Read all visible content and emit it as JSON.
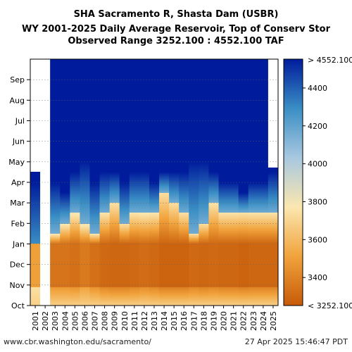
{
  "chart_data": {
    "type": "heatmap",
    "title_lines": [
      "SHA Sacramento R, Shasta Dam (USBR)",
      "WY 2001-2025 Daily Average Reservoir, Top of Conserv Stor",
      "Observed Range 3252.100 : 4552.100 TAF"
    ],
    "x_categories": [
      "2001",
      "2002",
      "2003",
      "2004",
      "2005",
      "2006",
      "2007",
      "2008",
      "2009",
      "2010",
      "2011",
      "2012",
      "2013",
      "2014",
      "2015",
      "2016",
      "2017",
      "2018",
      "2019",
      "2020",
      "2021",
      "2022",
      "2023",
      "2024",
      "2025"
    ],
    "y_categories": [
      "Oct",
      "Nov",
      "Dec",
      "Jan",
      "Feb",
      "Mar",
      "Apr",
      "May",
      "Jun",
      "Jul",
      "Aug",
      "Sep"
    ],
    "value_range": [
      3252.1,
      4552.1
    ],
    "colorbar_ticks": [
      4400,
      4200,
      4000,
      3800,
      3600,
      3400
    ],
    "colorbar_top_label": "> 4552.100",
    "colorbar_bottom_label": "< 3252.100",
    "colors": [
      "#c65a08",
      "#f1a33c",
      "#fbe7b0",
      "#a8c8e0",
      "#3a8ec4",
      "#001c9c"
    ],
    "series": [
      {
        "year": "2001",
        "rise_month": 1.5,
        "full_month": 6.0,
        "low_level": 0.55,
        "missing_after_month": 6.5
      },
      {
        "year": "2002",
        "rise_month": 4.0,
        "full_month": 6.0,
        "low_level": 0.5,
        "missing_after_month": 0
      },
      {
        "year": "2003",
        "rise_month": 3.5,
        "full_month": 6.0,
        "low_level": 0.2
      },
      {
        "year": "2004",
        "rise_month": 4.0,
        "full_month": 5.5,
        "low_level": 0.2
      },
      {
        "year": "2005",
        "rise_month": 4.5,
        "full_month": 6.5,
        "low_level": 0.18
      },
      {
        "year": "2006",
        "rise_month": 4.0,
        "full_month": 7.0,
        "low_level": 0.25
      },
      {
        "year": "2007",
        "rise_month": 3.5,
        "full_month": 6.0,
        "low_level": 0.18
      },
      {
        "year": "2008",
        "rise_month": 4.5,
        "full_month": 6.5,
        "low_level": 0.12
      },
      {
        "year": "2009",
        "rise_month": 5.0,
        "full_month": 6.5,
        "low_level": 0.1
      },
      {
        "year": "2010",
        "rise_month": 4.0,
        "full_month": 6.0,
        "low_level": 0.1
      },
      {
        "year": "2011",
        "rise_month": 4.5,
        "full_month": 6.5,
        "low_level": 0.12
      },
      {
        "year": "2012",
        "rise_month": 4.5,
        "full_month": 6.5,
        "low_level": 0.15
      },
      {
        "year": "2013",
        "rise_month": 4.5,
        "full_month": 6.0,
        "low_level": 0.12
      },
      {
        "year": "2014",
        "rise_month": 5.5,
        "full_month": 6.5,
        "low_level": 0.08
      },
      {
        "year": "2015",
        "rise_month": 5.0,
        "full_month": 6.5,
        "low_level": 0.08
      },
      {
        "year": "2016",
        "rise_month": 4.5,
        "full_month": 6.5,
        "low_level": 0.08
      },
      {
        "year": "2017",
        "rise_month": 3.5,
        "full_month": 7.0,
        "low_level": 0.12
      },
      {
        "year": "2018",
        "rise_month": 4.0,
        "full_month": 7.0,
        "low_level": 0.1
      },
      {
        "year": "2019",
        "rise_month": 5.0,
        "full_month": 6.5,
        "low_level": 0.12
      },
      {
        "year": "2020",
        "rise_month": 4.5,
        "full_month": 6.0,
        "low_level": 0.1
      },
      {
        "year": "2021",
        "rise_month": 4.5,
        "full_month": 6.0,
        "low_level": 0.1
      },
      {
        "year": "2022",
        "rise_month": 4.5,
        "full_month": 5.5,
        "low_level": 0.08
      },
      {
        "year": "2023",
        "rise_month": 4.5,
        "full_month": 6.0,
        "low_level": 0.1
      },
      {
        "year": "2024",
        "rise_month": 4.5,
        "full_month": 6.0,
        "low_level": 0.1
      },
      {
        "year": "2025",
        "rise_month": 4.5,
        "full_month": 6.5,
        "low_level": 0.1,
        "missing_after_month": 6.7
      }
    ]
  },
  "footer": {
    "url": "www.cbr.washington.edu/sacramento/",
    "timestamp": "27 Apr 2025 15:46:47 PDT"
  }
}
